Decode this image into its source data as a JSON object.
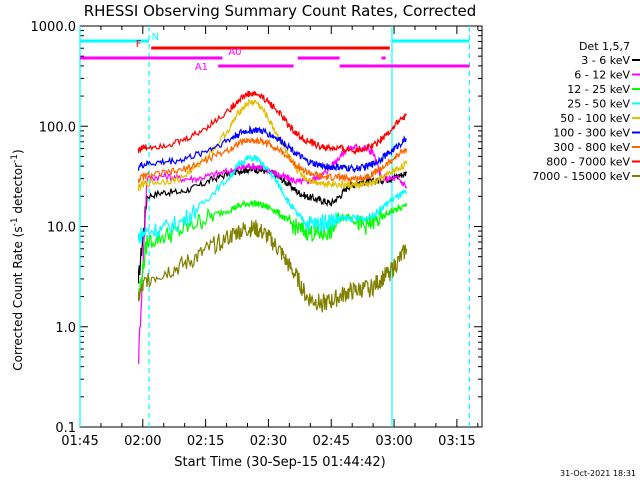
{
  "chart_data": {
    "type": "line",
    "title": "RHESSI Observing Summary Count Rates, Corrected",
    "xlabel": "Start Time (30-Sep-15 01:44:42)",
    "ylabel": "Corrected Count Rate (s",
    "ylabel_sup1": "-1",
    "ylabel_mid": " detector",
    "ylabel_sup2": "-1",
    "ylabel_end": ")",
    "yscale": "log",
    "ylim": [
      0.1,
      1000
    ],
    "xlim_minutes": [
      0,
      96
    ],
    "x_ticks": [
      {
        "t": 0,
        "label": "01:45"
      },
      {
        "t": 15,
        "label": "02:00"
      },
      {
        "t": 30,
        "label": "02:15"
      },
      {
        "t": 45,
        "label": "02:30"
      },
      {
        "t": 60,
        "label": "02:45"
      },
      {
        "t": 75,
        "label": "03:00"
      },
      {
        "t": 90,
        "label": "03:15"
      }
    ],
    "y_ticks": [
      {
        "v": 0.1,
        "label": "0.1"
      },
      {
        "v": 1,
        "label": "1.0"
      },
      {
        "v": 10,
        "label": "10.0"
      },
      {
        "v": 100,
        "label": "100.0"
      },
      {
        "v": 1000,
        "label": "1000.0"
      }
    ],
    "legend_title": "Det 1,5,7",
    "legend_position": "right",
    "timestamp": "31-Oct-2021 18:31",
    "x": [
      14,
      16,
      20,
      24,
      28,
      32,
      36,
      38,
      40,
      42,
      44,
      46,
      48,
      50,
      52,
      54,
      56,
      58,
      60,
      62,
      64,
      66,
      68,
      70,
      72,
      74,
      76,
      78
    ],
    "series": [
      {
        "name": "3 - 6 keV",
        "color": "#000000",
        "values": [
          3,
          20,
          22,
          22,
          25,
          30,
          34,
          36,
          37,
          37,
          36,
          34,
          30,
          26,
          22,
          20,
          19,
          18,
          17,
          20,
          25,
          27,
          28,
          28,
          29,
          30,
          32,
          34
        ]
      },
      {
        "name": "6 - 12 keV",
        "color": "#ff00ff",
        "values": [
          0.5,
          30,
          32,
          30,
          30,
          33,
          36,
          38,
          40,
          40,
          38,
          35,
          32,
          30,
          28,
          28,
          30,
          33,
          40,
          50,
          60,
          62,
          60,
          55,
          30,
          30,
          30,
          25
        ]
      },
      {
        "name": "12 - 25 keV",
        "color": "#00ff00",
        "values": [
          2,
          7,
          8,
          9,
          11,
          13,
          15,
          16,
          17,
          17,
          16,
          15,
          13,
          11,
          9.5,
          9,
          8.5,
          8.5,
          9,
          12,
          13,
          11,
          10,
          11,
          12,
          14,
          15,
          16
        ]
      },
      {
        "name": "25 - 50 keV",
        "color": "#00ffff",
        "values": [
          8,
          9,
          9.5,
          11,
          15,
          22,
          32,
          42,
          48,
          48,
          40,
          32,
          24,
          17,
          13,
          11,
          10.5,
          11,
          11.5,
          12,
          12,
          12,
          12,
          13,
          15,
          18,
          20,
          22
        ]
      },
      {
        "name": "50 - 100 keV",
        "color": "#e0c000",
        "values": [
          25,
          27,
          28,
          30,
          40,
          60,
          100,
          140,
          170,
          175,
          140,
          100,
          70,
          48,
          36,
          30,
          28,
          27,
          27,
          26,
          26,
          26,
          26,
          27,
          30,
          34,
          38,
          42
        ]
      },
      {
        "name": "100 - 300 keV",
        "color": "#0000ff",
        "values": [
          40,
          42,
          44,
          46,
          52,
          62,
          75,
          85,
          90,
          92,
          88,
          80,
          72,
          62,
          52,
          45,
          42,
          40,
          39,
          39,
          38,
          38,
          39,
          42,
          48,
          55,
          65,
          75
        ]
      },
      {
        "name": "300 - 800 keV",
        "color": "#ff6600",
        "values": [
          30,
          32,
          34,
          36,
          42,
          50,
          60,
          68,
          72,
          72,
          70,
          64,
          56,
          48,
          40,
          35,
          33,
          31,
          31,
          31,
          30,
          30,
          31,
          34,
          38,
          44,
          52,
          60
        ]
      },
      {
        "name": "800 - 7000 keV",
        "color": "#ff0000",
        "values": [
          60,
          62,
          65,
          70,
          85,
          110,
          150,
          185,
          210,
          210,
          190,
          160,
          130,
          100,
          82,
          72,
          66,
          62,
          60,
          60,
          58,
          58,
          60,
          65,
          75,
          90,
          110,
          130
        ]
      },
      {
        "name": "7000 - 15000 keV",
        "color": "#808000",
        "values": [
          2,
          3,
          3.5,
          4,
          5,
          6.5,
          8,
          9,
          9.5,
          9.5,
          8.5,
          7,
          5.5,
          4,
          3,
          2,
          1.8,
          1.7,
          1.8,
          2,
          2.2,
          2.3,
          2.4,
          2.5,
          3,
          3.5,
          4.5,
          6
        ]
      }
    ],
    "cyan_vlines_minutes": [
      0,
      16.5,
      74.5,
      93
    ],
    "cyan_vlines_dashed": [
      false,
      true,
      false,
      true
    ],
    "state_bars": [
      {
        "label": "N",
        "color": "#00ffff",
        "segments": [
          [
            0,
            16.5
          ],
          [
            74.5,
            93
          ]
        ],
        "row": 0
      },
      {
        "label": "F",
        "color": "#ff0000",
        "segments": [
          [
            17,
            74
          ]
        ],
        "row": 1
      },
      {
        "label": "A0",
        "color": "#ff00ff",
        "segments": [
          [
            0,
            34
          ],
          [
            52,
            62
          ],
          [
            72,
            73
          ]
        ],
        "row": 2
      },
      {
        "label": "A1",
        "color": "#ff00ff",
        "segments": [
          [
            33,
            51
          ],
          [
            62,
            93
          ]
        ],
        "row": 3
      }
    ]
  }
}
